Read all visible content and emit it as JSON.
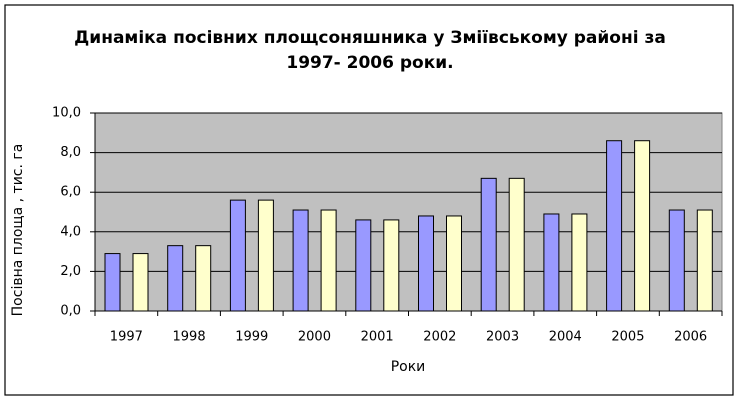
{
  "chart_data": {
    "type": "bar",
    "title": [
      "Динаміка посівних площсоняшника у Зміївському районі за",
      "1997- 2006 роки."
    ],
    "x_label": "Роки",
    "y_label": "Посівна площа , тис. га",
    "categories": [
      "1997",
      "1998",
      "1999",
      "2000",
      "2001",
      "2002",
      "2003",
      "2004",
      "2005",
      "2006"
    ],
    "series": [
      {
        "color": "#9999ff",
        "values": [
          2.9,
          3.3,
          5.6,
          5.1,
          4.6,
          4.8,
          6.7,
          4.9,
          8.6,
          5.1
        ]
      },
      {
        "color": "#ffffcc",
        "values": [
          2.9,
          3.3,
          5.6,
          5.1,
          4.6,
          4.8,
          6.7,
          4.9,
          8.6,
          5.1
        ]
      }
    ],
    "ylim": [
      0,
      10
    ],
    "yticks": [
      {
        "value": 0,
        "label": "0,0"
      },
      {
        "value": 2,
        "label": "2,0"
      },
      {
        "value": 4,
        "label": "4,0"
      },
      {
        "value": 6,
        "label": "6,0"
      },
      {
        "value": 8,
        "label": "8,0"
      },
      {
        "value": 10,
        "label": "10,0"
      }
    ],
    "grid": true,
    "plot_background": "#c0c0c0"
  }
}
